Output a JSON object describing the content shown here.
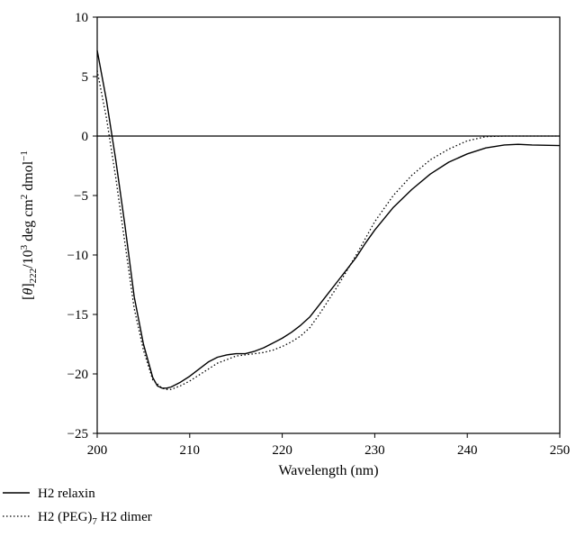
{
  "chart_data": {
    "type": "line",
    "title": "",
    "xlabel": "Wavelength (nm)",
    "ylabel": "[θ]222/10³ deg cm² dmol⁻¹",
    "ylabel_parts": {
      "bracket_open": "[",
      "theta": "θ",
      "bracket_close": "]",
      "sub": "222",
      "mid": "/10",
      "sup1": "3",
      "mid2": " deg cm",
      "sup2": "2",
      "mid3": " dmol",
      "sup3": "−1"
    },
    "xlim": [
      200,
      250
    ],
    "ylim": [
      -25,
      10
    ],
    "xticks": [
      200,
      210,
      220,
      230,
      240,
      250
    ],
    "yticks": [
      -25,
      -20,
      -15,
      -10,
      -5,
      0,
      5,
      10
    ],
    "zero_line": true,
    "grid": false,
    "legend_position": "bottom-left, below plot",
    "series": [
      {
        "name": "H2 relaxin",
        "style": "solid",
        "color": "#000000",
        "x": [
          200,
          201,
          202,
          203,
          204,
          205,
          206,
          206.5,
          207,
          207.5,
          208,
          209,
          210,
          211,
          212,
          213,
          214,
          215,
          216,
          217,
          218,
          219,
          220,
          221,
          222,
          223,
          224,
          225,
          226,
          227,
          228,
          229,
          230,
          232,
          234,
          236,
          238,
          240,
          242,
          244,
          245.5,
          247,
          250
        ],
        "y": [
          7.2,
          3.0,
          -2.0,
          -7.5,
          -13.5,
          -17.5,
          -20.3,
          -21.0,
          -21.2,
          -21.2,
          -21.1,
          -20.7,
          -20.2,
          -19.6,
          -19.0,
          -18.6,
          -18.4,
          -18.3,
          -18.3,
          -18.1,
          -17.8,
          -17.4,
          -17.0,
          -16.5,
          -15.9,
          -15.2,
          -14.2,
          -13.2,
          -12.2,
          -11.2,
          -10.2,
          -9.0,
          -7.9,
          -6.0,
          -4.5,
          -3.2,
          -2.2,
          -1.5,
          -1.0,
          -0.75,
          -0.7,
          -0.75,
          -0.8
        ]
      },
      {
        "name": "H2 (PEG)7 H2 dimer",
        "name_parts": {
          "pre": "H2 (PEG)",
          "sub": "7",
          "post": " H2 dimer"
        },
        "style": "dotted",
        "color": "#000000",
        "x": [
          200,
          201,
          202,
          203,
          204,
          205,
          206,
          207,
          207.5,
          208,
          209,
          210,
          211,
          212,
          213,
          214,
          215,
          216,
          217,
          218,
          219,
          220,
          221,
          222,
          223,
          224,
          225,
          226,
          227,
          228,
          229,
          230,
          232,
          234,
          236,
          238,
          240,
          242,
          244,
          246,
          248,
          250
        ],
        "y": [
          5.5,
          1.5,
          -3.5,
          -9.0,
          -14.5,
          -18.0,
          -20.5,
          -21.2,
          -21.3,
          -21.3,
          -21.0,
          -20.6,
          -20.1,
          -19.6,
          -19.1,
          -18.8,
          -18.5,
          -18.4,
          -18.3,
          -18.2,
          -18.0,
          -17.7,
          -17.3,
          -16.8,
          -16.1,
          -15.0,
          -13.8,
          -12.6,
          -11.3,
          -10.0,
          -8.6,
          -7.2,
          -5.0,
          -3.3,
          -2.0,
          -1.1,
          -0.4,
          -0.05,
          0.0,
          0.0,
          0.0,
          0.0
        ]
      }
    ]
  }
}
